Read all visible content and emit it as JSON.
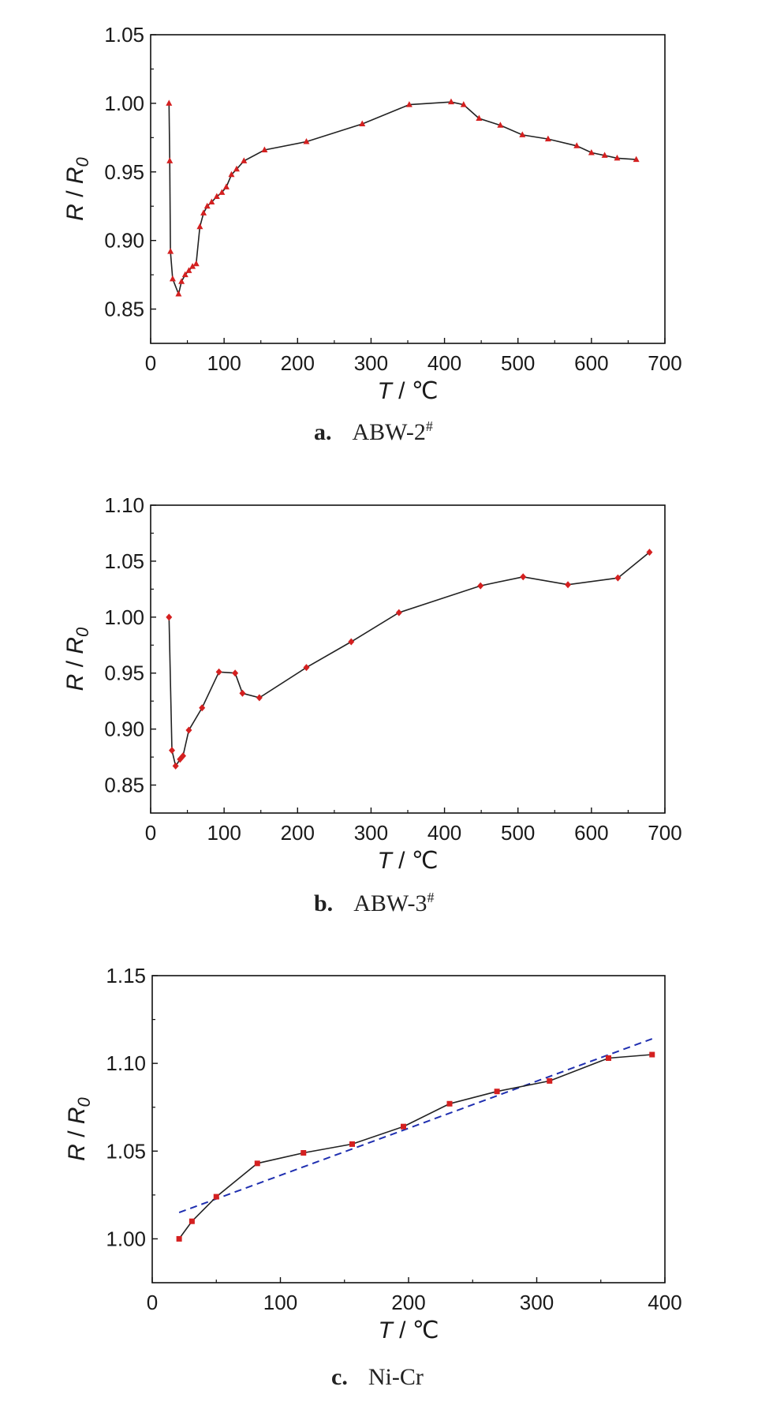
{
  "chart_data": [
    {
      "type": "line",
      "caption_letter": "a.",
      "caption_text": "ABW-2",
      "caption_sup": "#",
      "xlabel_var": "T",
      "xlabel_unit": " / ℃",
      "ylabel_var": "R",
      "ylabel_sep": " / ",
      "ylabel_var2": "R",
      "ylabel_sub": "0",
      "xlim": [
        0,
        700
      ],
      "ylim": [
        0.825,
        1.05
      ],
      "xticks": [
        "0",
        "100",
        "200",
        "300",
        "400",
        "500",
        "600",
        "700"
      ],
      "yticks": [
        "0.85",
        "0.90",
        "0.95",
        "1.00",
        "1.05"
      ],
      "marker": "triangle",
      "marker_color": "#d42020",
      "line_color": "#222222",
      "series": [
        {
          "x": [
            25,
            26,
            27,
            30,
            38,
            42,
            47,
            52,
            57,
            62,
            67,
            72,
            77,
            83,
            90,
            97,
            103,
            110,
            117,
            127,
            155,
            212,
            288,
            352,
            409,
            426,
            447,
            476,
            506,
            541,
            580,
            600,
            618,
            635,
            661
          ],
          "y": [
            1.0,
            0.958,
            0.892,
            0.872,
            0.861,
            0.87,
            0.875,
            0.878,
            0.881,
            0.883,
            0.91,
            0.92,
            0.925,
            0.928,
            0.932,
            0.935,
            0.939,
            0.948,
            0.952,
            0.958,
            0.966,
            0.972,
            0.985,
            0.999,
            1.001,
            0.999,
            0.989,
            0.984,
            0.977,
            0.974,
            0.969,
            0.964,
            0.962,
            0.96,
            0.959
          ]
        }
      ]
    },
    {
      "type": "line",
      "caption_letter": "b.",
      "caption_text": "ABW-3",
      "caption_sup": "#",
      "xlabel_var": "T",
      "xlabel_unit": " / ℃",
      "ylabel_var": "R",
      "ylabel_sep": " / ",
      "ylabel_var2": "R",
      "ylabel_sub": "0",
      "xlim": [
        0,
        700
      ],
      "ylim": [
        0.825,
        1.1
      ],
      "xticks": [
        "0",
        "100",
        "200",
        "300",
        "400",
        "500",
        "600",
        "700"
      ],
      "yticks": [
        "0.85",
        "0.90",
        "0.95",
        "1.00",
        "1.05",
        "1.10"
      ],
      "marker": "diamond",
      "marker_color": "#d42020",
      "line_color": "#222222",
      "series": [
        {
          "x": [
            25,
            29,
            34,
            40,
            44,
            52,
            70,
            93,
            115,
            125,
            148,
            212,
            273,
            338,
            449,
            507,
            568,
            636,
            679
          ],
          "y": [
            1.0,
            0.881,
            0.867,
            0.873,
            0.876,
            0.899,
            0.919,
            0.951,
            0.95,
            0.932,
            0.928,
            0.955,
            0.978,
            1.004,
            1.028,
            1.036,
            1.029,
            1.035,
            1.058
          ]
        }
      ]
    },
    {
      "type": "line",
      "caption_letter": "c.",
      "caption_text": "Ni-Cr",
      "caption_sup": "",
      "xlabel_var": "T",
      "xlabel_unit": " / ℃",
      "ylabel_var": "R",
      "ylabel_sep": " / ",
      "ylabel_var2": "R",
      "ylabel_sub": "0",
      "xlim": [
        0,
        400
      ],
      "ylim": [
        0.975,
        1.15
      ],
      "xticks": [
        "0",
        "100",
        "200",
        "300",
        "400"
      ],
      "yticks": [
        "1.00",
        "1.05",
        "1.10",
        "1.15"
      ],
      "marker": "square",
      "marker_color": "#d42020",
      "line_color": "#222222",
      "series": [
        {
          "x": [
            21,
            31,
            50,
            82,
            118,
            156,
            196,
            232,
            269,
            310,
            356,
            390
          ],
          "y": [
            1.0,
            1.01,
            1.024,
            1.043,
            1.049,
            1.054,
            1.064,
            1.077,
            1.084,
            1.09,
            1.103,
            1.105
          ]
        }
      ],
      "fit_line": {
        "x": [
          21,
          390
        ],
        "y": [
          1.015,
          1.114
        ],
        "color": "#1f2fb0",
        "style": "dashed"
      }
    }
  ]
}
